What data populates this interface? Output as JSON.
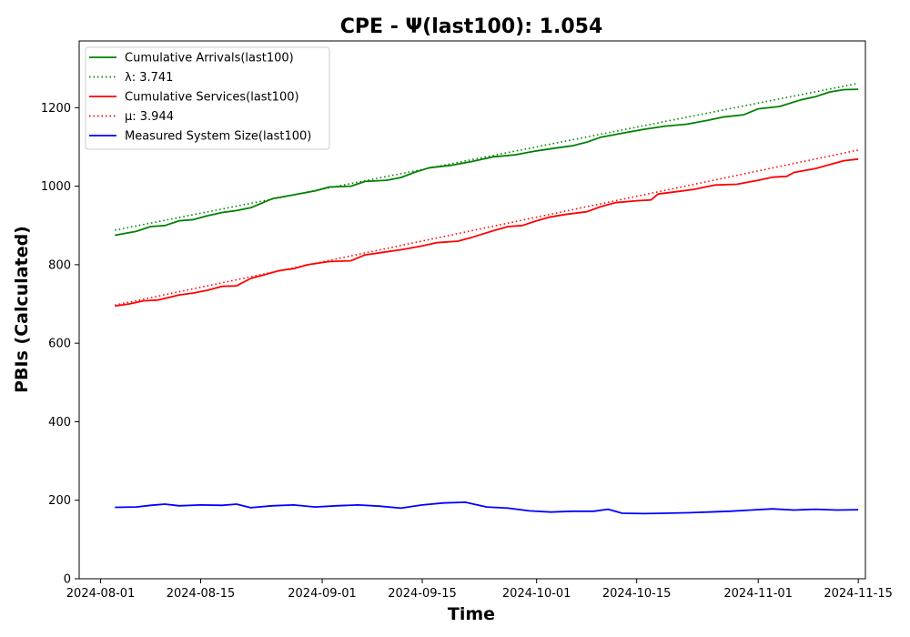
{
  "chart_data": {
    "type": "line",
    "title": "CPE -  Ψ(last100): 1.054",
    "xlabel": "Time",
    "ylabel": "PBIs (Calculated)",
    "xlim": [
      "2024-07-29",
      "2024-11-16"
    ],
    "ylim": [
      0,
      1370
    ],
    "x_ticks": [
      "2024-08-01",
      "2024-08-15",
      "2024-09-01",
      "2024-09-15",
      "2024-10-01",
      "2024-10-15",
      "2024-11-01",
      "2024-11-15"
    ],
    "y_ticks": [
      0,
      200,
      400,
      600,
      800,
      1000,
      1200
    ],
    "grid": false,
    "legend_position": "upper-left",
    "series": [
      {
        "name": "Cumulative Arrivals(last100)",
        "style": "solid",
        "color": "#008000",
        "points": [
          [
            "2024-08-03",
            875
          ],
          [
            "2024-08-06",
            885
          ],
          [
            "2024-08-08",
            897
          ],
          [
            "2024-08-10",
            900
          ],
          [
            "2024-08-12",
            912
          ],
          [
            "2024-08-14",
            915
          ],
          [
            "2024-08-16",
            925
          ],
          [
            "2024-08-18",
            933
          ],
          [
            "2024-08-20",
            938
          ],
          [
            "2024-08-22",
            945
          ],
          [
            "2024-08-25",
            968
          ],
          [
            "2024-08-28",
            978
          ],
          [
            "2024-08-31",
            988
          ],
          [
            "2024-09-02",
            998
          ],
          [
            "2024-09-05",
            1000
          ],
          [
            "2024-09-07",
            1012
          ],
          [
            "2024-09-10",
            1015
          ],
          [
            "2024-09-12",
            1022
          ],
          [
            "2024-09-14",
            1036
          ],
          [
            "2024-09-16",
            1047
          ],
          [
            "2024-09-19",
            1053
          ],
          [
            "2024-09-22",
            1063
          ],
          [
            "2024-09-25",
            1075
          ],
          [
            "2024-09-28",
            1080
          ],
          [
            "2024-10-01",
            1090
          ],
          [
            "2024-10-04",
            1098
          ],
          [
            "2024-10-06",
            1103
          ],
          [
            "2024-10-08",
            1112
          ],
          [
            "2024-10-10",
            1125
          ],
          [
            "2024-10-13",
            1135
          ],
          [
            "2024-10-16",
            1145
          ],
          [
            "2024-10-19",
            1153
          ],
          [
            "2024-10-22",
            1158
          ],
          [
            "2024-10-25",
            1168
          ],
          [
            "2024-10-27",
            1176
          ],
          [
            "2024-10-30",
            1182
          ],
          [
            "2024-11-01",
            1197
          ],
          [
            "2024-11-04",
            1203
          ],
          [
            "2024-11-07",
            1220
          ],
          [
            "2024-11-09",
            1228
          ],
          [
            "2024-11-11",
            1240
          ],
          [
            "2024-11-13",
            1246
          ],
          [
            "2024-11-15",
            1247
          ]
        ]
      },
      {
        "name": "λ: 3.741",
        "style": "dotted",
        "color": "#008000",
        "points": [
          [
            "2024-08-03",
            888
          ],
          [
            "2024-11-15",
            1262
          ]
        ]
      },
      {
        "name": "Cumulative Services(last100)",
        "style": "solid",
        "color": "#ff0000",
        "points": [
          [
            "2024-08-03",
            695
          ],
          [
            "2024-08-05",
            700
          ],
          [
            "2024-08-07",
            708
          ],
          [
            "2024-08-09",
            710
          ],
          [
            "2024-08-12",
            723
          ],
          [
            "2024-08-14",
            728
          ],
          [
            "2024-08-16",
            735
          ],
          [
            "2024-08-18",
            745
          ],
          [
            "2024-08-20",
            746
          ],
          [
            "2024-08-22",
            765
          ],
          [
            "2024-08-24",
            775
          ],
          [
            "2024-08-26",
            785
          ],
          [
            "2024-08-28",
            790
          ],
          [
            "2024-08-30",
            800
          ],
          [
            "2024-09-02",
            808
          ],
          [
            "2024-09-05",
            810
          ],
          [
            "2024-09-07",
            825
          ],
          [
            "2024-09-10",
            833
          ],
          [
            "2024-09-12",
            838
          ],
          [
            "2024-09-15",
            848
          ],
          [
            "2024-09-17",
            856
          ],
          [
            "2024-09-20",
            860
          ],
          [
            "2024-09-22",
            870
          ],
          [
            "2024-09-25",
            887
          ],
          [
            "2024-09-27",
            897
          ],
          [
            "2024-09-29",
            900
          ],
          [
            "2024-10-01",
            912
          ],
          [
            "2024-10-03",
            922
          ],
          [
            "2024-10-05",
            928
          ],
          [
            "2024-10-08",
            935
          ],
          [
            "2024-10-10",
            948
          ],
          [
            "2024-10-12",
            958
          ],
          [
            "2024-10-15",
            963
          ],
          [
            "2024-10-17",
            965
          ],
          [
            "2024-10-18",
            980
          ],
          [
            "2024-10-21",
            987
          ],
          [
            "2024-10-23",
            992
          ],
          [
            "2024-10-26",
            1003
          ],
          [
            "2024-10-29",
            1005
          ],
          [
            "2024-11-01",
            1015
          ],
          [
            "2024-11-03",
            1023
          ],
          [
            "2024-11-05",
            1025
          ],
          [
            "2024-11-06",
            1035
          ],
          [
            "2024-11-09",
            1045
          ],
          [
            "2024-11-11",
            1055
          ],
          [
            "2024-11-13",
            1065
          ],
          [
            "2024-11-15",
            1069
          ]
        ]
      },
      {
        "name": "μ: 3.944",
        "style": "dotted",
        "color": "#ff0000",
        "points": [
          [
            "2024-08-03",
            697
          ],
          [
            "2024-11-15",
            1092
          ]
        ]
      },
      {
        "name": "Measured System Size(last100)",
        "style": "solid",
        "color": "#0000ff",
        "points": [
          [
            "2024-08-03",
            182
          ],
          [
            "2024-08-06",
            183
          ],
          [
            "2024-08-08",
            187
          ],
          [
            "2024-08-10",
            190
          ],
          [
            "2024-08-12",
            186
          ],
          [
            "2024-08-15",
            188
          ],
          [
            "2024-08-18",
            187
          ],
          [
            "2024-08-20",
            190
          ],
          [
            "2024-08-22",
            181
          ],
          [
            "2024-08-25",
            186
          ],
          [
            "2024-08-28",
            188
          ],
          [
            "2024-08-31",
            183
          ],
          [
            "2024-09-03",
            186
          ],
          [
            "2024-09-06",
            188
          ],
          [
            "2024-09-09",
            185
          ],
          [
            "2024-09-12",
            180
          ],
          [
            "2024-09-15",
            188
          ],
          [
            "2024-09-18",
            193
          ],
          [
            "2024-09-21",
            195
          ],
          [
            "2024-09-24",
            183
          ],
          [
            "2024-09-27",
            180
          ],
          [
            "2024-09-30",
            173
          ],
          [
            "2024-10-03",
            170
          ],
          [
            "2024-10-06",
            172
          ],
          [
            "2024-10-09",
            172
          ],
          [
            "2024-10-11",
            177
          ],
          [
            "2024-10-13",
            167
          ],
          [
            "2024-10-16",
            166
          ],
          [
            "2024-10-19",
            167
          ],
          [
            "2024-10-22",
            168
          ],
          [
            "2024-10-25",
            170
          ],
          [
            "2024-10-28",
            172
          ],
          [
            "2024-10-31",
            175
          ],
          [
            "2024-11-03",
            178
          ],
          [
            "2024-11-06",
            175
          ],
          [
            "2024-11-09",
            177
          ],
          [
            "2024-11-12",
            175
          ],
          [
            "2024-11-15",
            176
          ]
        ]
      }
    ]
  }
}
